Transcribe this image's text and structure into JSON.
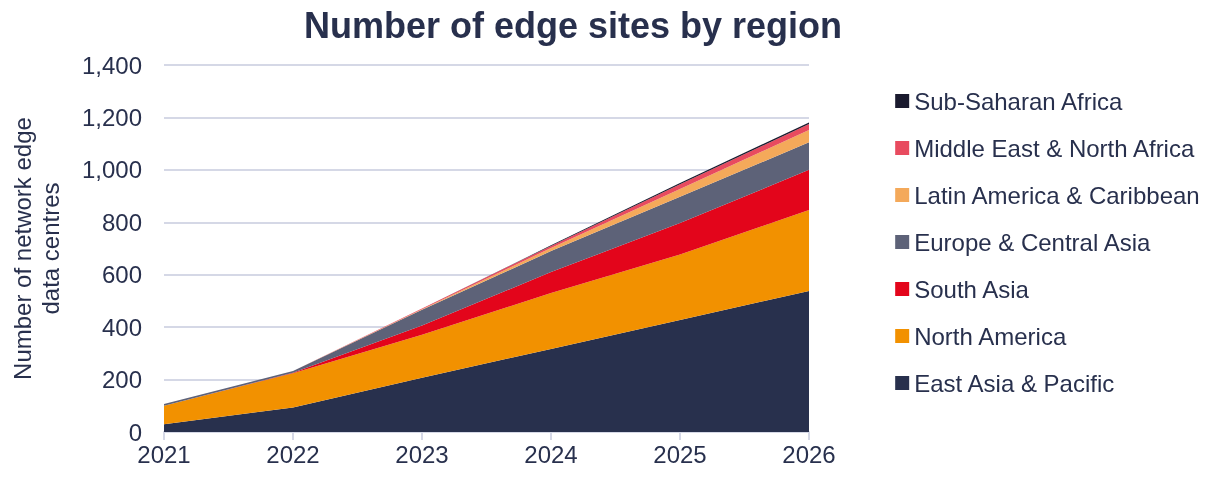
{
  "chart_data": {
    "type": "area",
    "title": "Number of edge sites by region",
    "ylabel": "Number of network edge\ndata centres",
    "categories": [
      "2021",
      "2022",
      "2023",
      "2024",
      "2025",
      "2026"
    ],
    "stacked": true,
    "ylim": [
      0,
      1400
    ],
    "yticks": [
      0,
      {
        "value": 200,
        "label": "200"
      },
      {
        "value": 400,
        "label": "400"
      },
      {
        "value": 600,
        "label": "600"
      },
      {
        "value": 800,
        "label": "800"
      },
      {
        "value": 1000,
        "label": "1,000"
      },
      {
        "value": 1200,
        "label": "1,200"
      },
      {
        "value": 1400,
        "label": "1,400"
      }
    ],
    "grid": "y",
    "legend": "right",
    "series": [
      {
        "name": "East Asia & Pacific",
        "color": "#28304d",
        "values": [
          30,
          93,
          207,
          317,
          427,
          538
        ]
      },
      {
        "name": "North America",
        "color": "#f29100",
        "values": [
          70,
          131,
          164,
          213,
          250,
          309
        ]
      },
      {
        "name": "South Asia",
        "color": "#e3051b",
        "values": [
          0,
          2,
          35,
          80,
          120,
          153
        ]
      },
      {
        "name": "Europe & Central Asia",
        "color": "#5d6278",
        "values": [
          7,
          7,
          60,
          80,
          100,
          105
        ]
      },
      {
        "name": "Latin America & Caribbean",
        "color": "#f4a95a",
        "values": [
          0,
          0,
          2,
          12,
          30,
          47
        ]
      },
      {
        "name": "Middle East & North Africa",
        "color": "#e84b5f",
        "values": [
          0,
          0,
          3,
          8,
          18,
          23
        ]
      },
      {
        "name": "Sub-Saharan Africa",
        "color": "#1a1a2e",
        "values": [
          0,
          0,
          0,
          2,
          5,
          6
        ]
      }
    ]
  }
}
